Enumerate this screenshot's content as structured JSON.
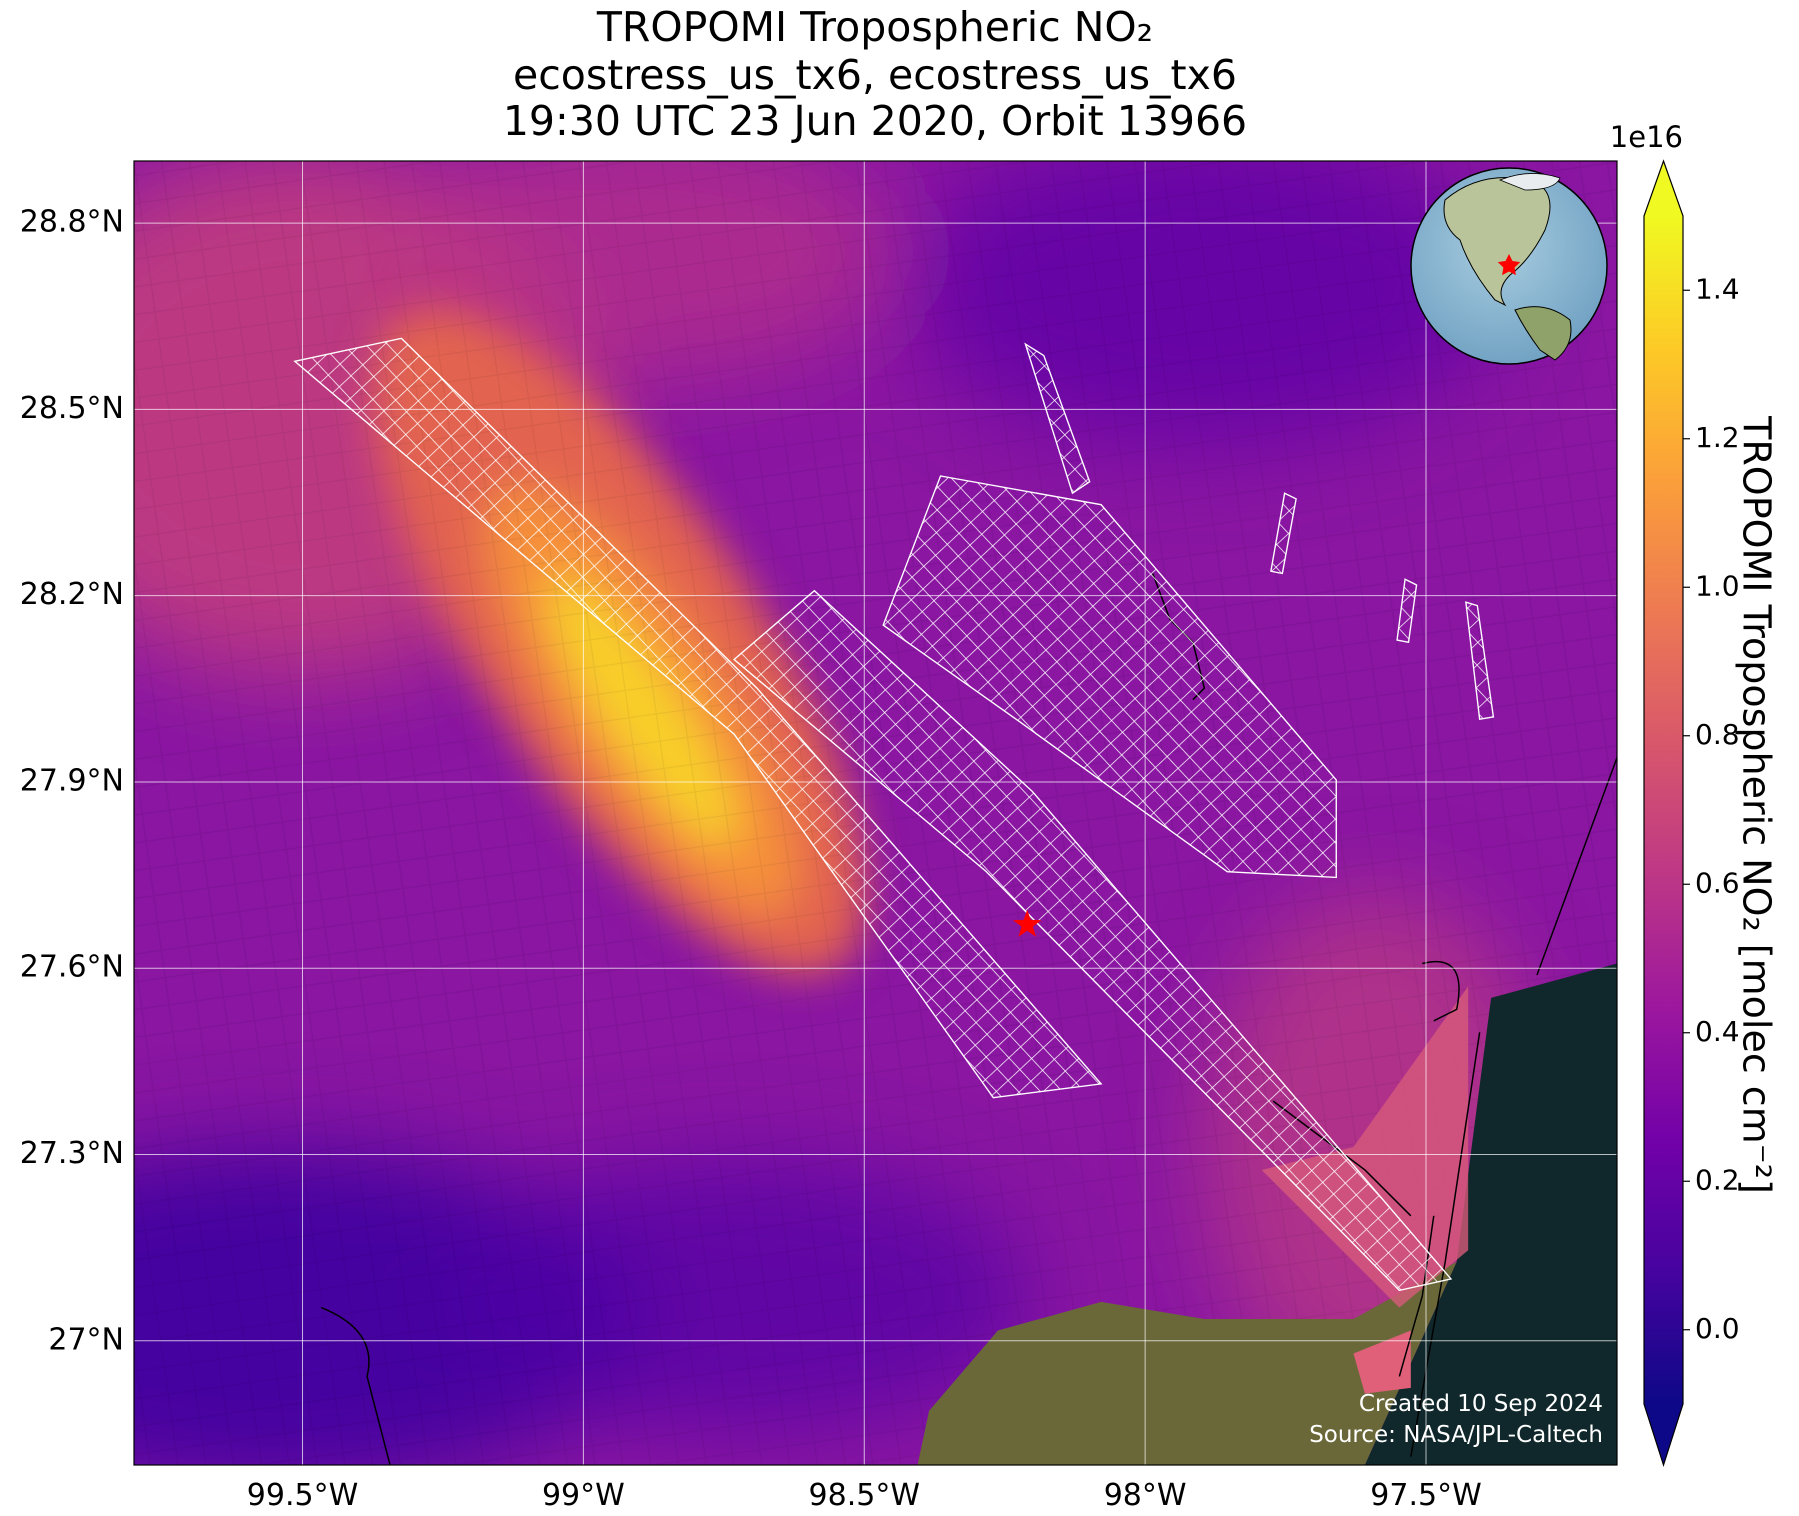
{
  "map": {
    "title_lines": [
      "TROPOMI Tropospheric NO₂",
      "ecostress_us_tx6, ecostress_us_tx6",
      "19:30 UTC 23 Jun 2020, Orbit 13966"
    ],
    "xlim": [
      -99.8,
      -97.16
    ],
    "ylim": [
      26.8,
      28.9
    ],
    "xticks": [
      {
        "value": -99.5,
        "label": "99.5°W"
      },
      {
        "value": -99,
        "label": "99°W"
      },
      {
        "value": -98.5,
        "label": "98.5°W"
      },
      {
        "value": -98,
        "label": "98°W"
      },
      {
        "value": -97.5,
        "label": "97.5°W"
      }
    ],
    "yticks": [
      {
        "value": 27,
        "label": "27°N"
      },
      {
        "value": 27.3,
        "label": "27.3°N"
      },
      {
        "value": 27.6,
        "label": "27.6°N"
      },
      {
        "value": 27.9,
        "label": "27.9°N"
      },
      {
        "value": 28.2,
        "label": "28.2°N"
      },
      {
        "value": 28.5,
        "label": "28.5°N"
      },
      {
        "value": 28.8,
        "label": "28.8°N"
      }
    ],
    "grid": true,
    "marker": {
      "lon": -98.21,
      "lat": 27.67,
      "color": "#ff0000"
    },
    "credits": [
      "Created 10 Sep 2024",
      "Source: NASA/JPL-Caltech"
    ]
  },
  "colorbar": {
    "label": "TROPOMI Tropospheric NO₂ [molec cm⁻²]",
    "multiplier": "1e16",
    "lim": [
      -0.1,
      1.5
    ],
    "ticks": [
      {
        "value": 0,
        "label": "0.0"
      },
      0.2,
      0.4,
      0.6,
      0.8,
      {
        "value": 1,
        "label": "1.0"
      },
      1.2,
      1.4
    ],
    "colormap": "plasma"
  }
}
